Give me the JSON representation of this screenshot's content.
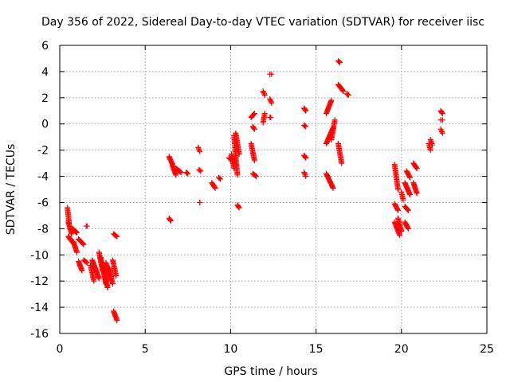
{
  "chart_data": {
    "type": "scatter",
    "title": "Day 356 of 2022, Sidereal Day-to-day VTEC variation (SDTVAR) for receiver iisc",
    "xlabel": "GPS time / hours",
    "ylabel": "SDTVAR / TECUs",
    "xlim": [
      0,
      25
    ],
    "ylim": [
      -16,
      6
    ],
    "xticks": [
      0,
      5,
      10,
      15,
      20,
      25
    ],
    "yticks": [
      -16,
      -14,
      -12,
      -10,
      -8,
      -6,
      -4,
      -2,
      0,
      2,
      4,
      6
    ],
    "grid": true,
    "marker": "+",
    "color": "#ff0000",
    "segments": [
      {
        "x0": 0.45,
        "x1": 0.55,
        "y0": -6.4,
        "y1": -7.6
      },
      {
        "x0": 0.5,
        "x1": 0.7,
        "y0": -7.5,
        "y1": -8.4
      },
      {
        "x0": 0.5,
        "x1": 0.8,
        "y0": -8.6,
        "y1": -9.1
      },
      {
        "x0": 0.8,
        "x1": 1.0,
        "y0": -9.0,
        "y1": -9.8
      },
      {
        "x0": 0.75,
        "x1": 1.0,
        "y0": -8.0,
        "y1": -8.3
      },
      {
        "x0": 1.1,
        "x1": 1.4,
        "y0": -8.8,
        "y1": -9.2
      },
      {
        "x0": 1.1,
        "x1": 1.3,
        "y0": -10.5,
        "y1": -11.2
      },
      {
        "x0": 1.4,
        "x1": 1.6,
        "y0": -10.4,
        "y1": -10.6
      },
      {
        "x0": 1.55,
        "x1": 1.6,
        "y0": -7.8,
        "y1": -7.8
      },
      {
        "x0": 1.8,
        "x1": 2.0,
        "y0": -10.8,
        "y1": -12.0
      },
      {
        "x0": 1.9,
        "x1": 2.3,
        "y0": -10.4,
        "y1": -11.8
      },
      {
        "x0": 2.3,
        "x1": 2.5,
        "y0": -9.8,
        "y1": -11.2
      },
      {
        "x0": 2.4,
        "x1": 2.7,
        "y0": -10.2,
        "y1": -12.2
      },
      {
        "x0": 2.5,
        "x1": 2.8,
        "y0": -10.8,
        "y1": -12.5
      },
      {
        "x0": 2.7,
        "x1": 3.0,
        "y0": -10.6,
        "y1": -12.0
      },
      {
        "x0": 2.9,
        "x1": 3.1,
        "y0": -11.0,
        "y1": -12.2
      },
      {
        "x0": 3.1,
        "x1": 3.3,
        "y0": -10.4,
        "y1": -11.6
      },
      {
        "x0": 3.15,
        "x1": 3.35,
        "y0": -8.4,
        "y1": -8.6
      },
      {
        "x0": 3.15,
        "x1": 3.35,
        "y0": -14.3,
        "y1": -15.0
      },
      {
        "x0": 6.4,
        "x1": 6.5,
        "y0": -7.2,
        "y1": -7.4
      },
      {
        "x0": 6.4,
        "x1": 6.6,
        "y0": -2.5,
        "y1": -3.1
      },
      {
        "x0": 6.6,
        "x1": 6.8,
        "y0": -3.2,
        "y1": -3.9
      },
      {
        "x0": 6.8,
        "x1": 7.1,
        "y0": -3.4,
        "y1": -3.7
      },
      {
        "x0": 7.4,
        "x1": 7.5,
        "y0": -3.7,
        "y1": -3.8
      },
      {
        "x0": 8.1,
        "x1": 8.2,
        "y0": -1.8,
        "y1": -2.1
      },
      {
        "x0": 8.15,
        "x1": 8.25,
        "y0": -3.5,
        "y1": -3.6
      },
      {
        "x0": 8.2,
        "x1": 8.2,
        "y0": -6.0,
        "y1": -6.0
      },
      {
        "x0": 8.9,
        "x1": 9.1,
        "y0": -4.5,
        "y1": -4.9
      },
      {
        "x0": 9.3,
        "x1": 9.4,
        "y0": -4.1,
        "y1": -4.2
      },
      {
        "x0": 9.9,
        "x1": 10.1,
        "y0": -2.6,
        "y1": -2.8
      },
      {
        "x0": 10.05,
        "x1": 10.2,
        "y0": -2.3,
        "y1": -3.4
      },
      {
        "x0": 10.2,
        "x1": 10.4,
        "y0": -0.9,
        "y1": -3.9
      },
      {
        "x0": 10.3,
        "x1": 10.5,
        "y0": -0.7,
        "y1": -2.3
      },
      {
        "x0": 10.4,
        "x1": 10.5,
        "y0": -6.2,
        "y1": -6.4
      },
      {
        "x0": 11.2,
        "x1": 11.4,
        "y0": 0.5,
        "y1": 0.8
      },
      {
        "x0": 11.3,
        "x1": 11.4,
        "y0": -0.2,
        "y1": -0.4
      },
      {
        "x0": 11.2,
        "x1": 11.4,
        "y0": -1.5,
        "y1": -2.8
      },
      {
        "x0": 11.3,
        "x1": 11.5,
        "y0": -3.8,
        "y1": -4.0
      },
      {
        "x0": 11.9,
        "x1": 12.0,
        "y0": 2.5,
        "y1": 2.2
      },
      {
        "x0": 11.9,
        "x1": 12.0,
        "y0": 0.1,
        "y1": 0.8
      },
      {
        "x0": 12.3,
        "x1": 12.4,
        "y0": 3.8,
        "y1": 3.8
      },
      {
        "x0": 12.3,
        "x1": 12.4,
        "y0": 1.9,
        "y1": 1.6
      },
      {
        "x0": 12.3,
        "x1": 12.35,
        "y0": 0.5,
        "y1": 0.5
      },
      {
        "x0": 14.3,
        "x1": 14.4,
        "y0": 1.2,
        "y1": 1.0
      },
      {
        "x0": 14.3,
        "x1": 14.4,
        "y0": -0.1,
        "y1": -0.2
      },
      {
        "x0": 14.3,
        "x1": 14.4,
        "y0": -2.4,
        "y1": -2.6
      },
      {
        "x0": 14.3,
        "x1": 14.4,
        "y0": -3.7,
        "y1": -4.0
      },
      {
        "x0": 15.6,
        "x1": 15.9,
        "y0": 0.8,
        "y1": 1.8
      },
      {
        "x0": 15.6,
        "x1": 16.0,
        "y0": -1.5,
        "y1": -0.3
      },
      {
        "x0": 15.9,
        "x1": 16.1,
        "y0": -1.2,
        "y1": 0.3
      },
      {
        "x0": 15.6,
        "x1": 16.0,
        "y0": -3.8,
        "y1": -4.9
      },
      {
        "x0": 16.3,
        "x1": 16.4,
        "y0": 4.8,
        "y1": 4.7
      },
      {
        "x0": 16.3,
        "x1": 16.6,
        "y0": 3.0,
        "y1": 2.5
      },
      {
        "x0": 16.3,
        "x1": 16.5,
        "y0": -1.5,
        "y1": -3.0
      },
      {
        "x0": 16.8,
        "x1": 16.9,
        "y0": 2.3,
        "y1": 2.2
      },
      {
        "x0": 19.6,
        "x1": 19.8,
        "y0": -3.1,
        "y1": -5.0
      },
      {
        "x0": 19.6,
        "x1": 19.8,
        "y0": -6.1,
        "y1": -6.6
      },
      {
        "x0": 19.6,
        "x1": 19.9,
        "y0": -7.5,
        "y1": -8.5
      },
      {
        "x0": 19.8,
        "x1": 20.0,
        "y0": -7.2,
        "y1": -8.2
      },
      {
        "x0": 20.0,
        "x1": 20.1,
        "y0": -5.2,
        "y1": -5.8
      },
      {
        "x0": 20.2,
        "x1": 20.4,
        "y0": -6.3,
        "y1": -6.6
      },
      {
        "x0": 20.2,
        "x1": 20.4,
        "y0": -7.5,
        "y1": -8.0
      },
      {
        "x0": 20.2,
        "x1": 20.5,
        "y0": -4.5,
        "y1": -5.4
      },
      {
        "x0": 20.3,
        "x1": 20.5,
        "y0": -3.6,
        "y1": -4.1
      },
      {
        "x0": 20.7,
        "x1": 20.9,
        "y0": -3.0,
        "y1": -3.4
      },
      {
        "x0": 20.7,
        "x1": 20.9,
        "y0": -4.5,
        "y1": -5.3
      },
      {
        "x0": 21.6,
        "x1": 21.7,
        "y0": -1.5,
        "y1": -2.0
      },
      {
        "x0": 21.7,
        "x1": 21.8,
        "y0": -1.2,
        "y1": -1.6
      },
      {
        "x0": 22.3,
        "x1": 22.4,
        "y0": 1.0,
        "y1": 0.8
      },
      {
        "x0": 22.3,
        "x1": 22.4,
        "y0": 0.3,
        "y1": 0.3
      },
      {
        "x0": 22.3,
        "x1": 22.4,
        "y0": -0.4,
        "y1": -0.7
      }
    ]
  }
}
